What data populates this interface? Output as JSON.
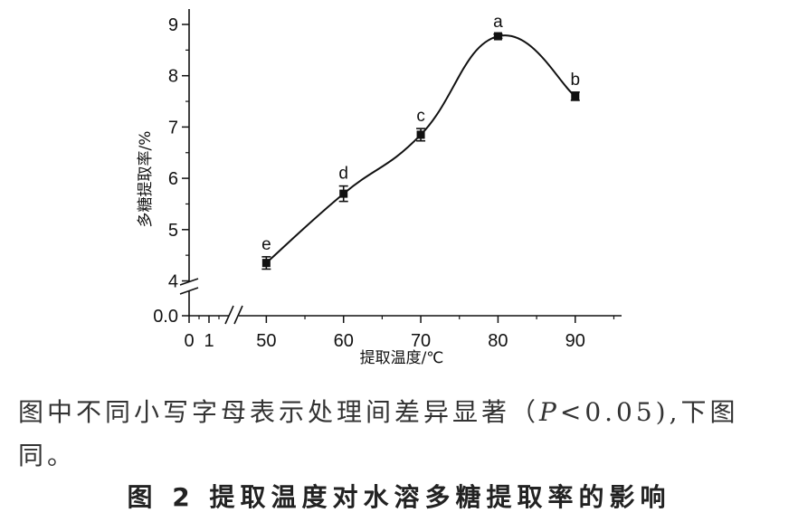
{
  "chart_data": {
    "type": "scatter",
    "xlabel": "提取温度/℃",
    "ylabel": "多糖提取率/%",
    "x_ticks": [
      "0",
      "1",
      "50",
      "60",
      "70",
      "80",
      "90"
    ],
    "y_ticks": [
      "0.0",
      "4",
      "5",
      "6",
      "7",
      "8",
      "9"
    ],
    "xlim": [
      40,
      96
    ],
    "ylim": [
      3.85,
      9.3
    ],
    "axis_breaks": {
      "x": true,
      "y": true
    },
    "series": [
      {
        "x": [
          50,
          60,
          70,
          80,
          90
        ],
        "y": [
          4.35,
          5.7,
          6.85,
          8.77,
          7.6
        ],
        "error": [
          0.12,
          0.15,
          0.12,
          0.04,
          0.08
        ],
        "labels": [
          "e",
          "d",
          "c",
          "a",
          "b"
        ]
      }
    ],
    "curve": "smooth",
    "grid": false,
    "marker_color": "#111111"
  },
  "note": {
    "part1": "图中不同小写字母表示处理间差异显著（",
    "p": "P",
    "part2": "<0.05),下图同。"
  },
  "caption": "图 2   提取温度对水溶多糖提取率的影响"
}
